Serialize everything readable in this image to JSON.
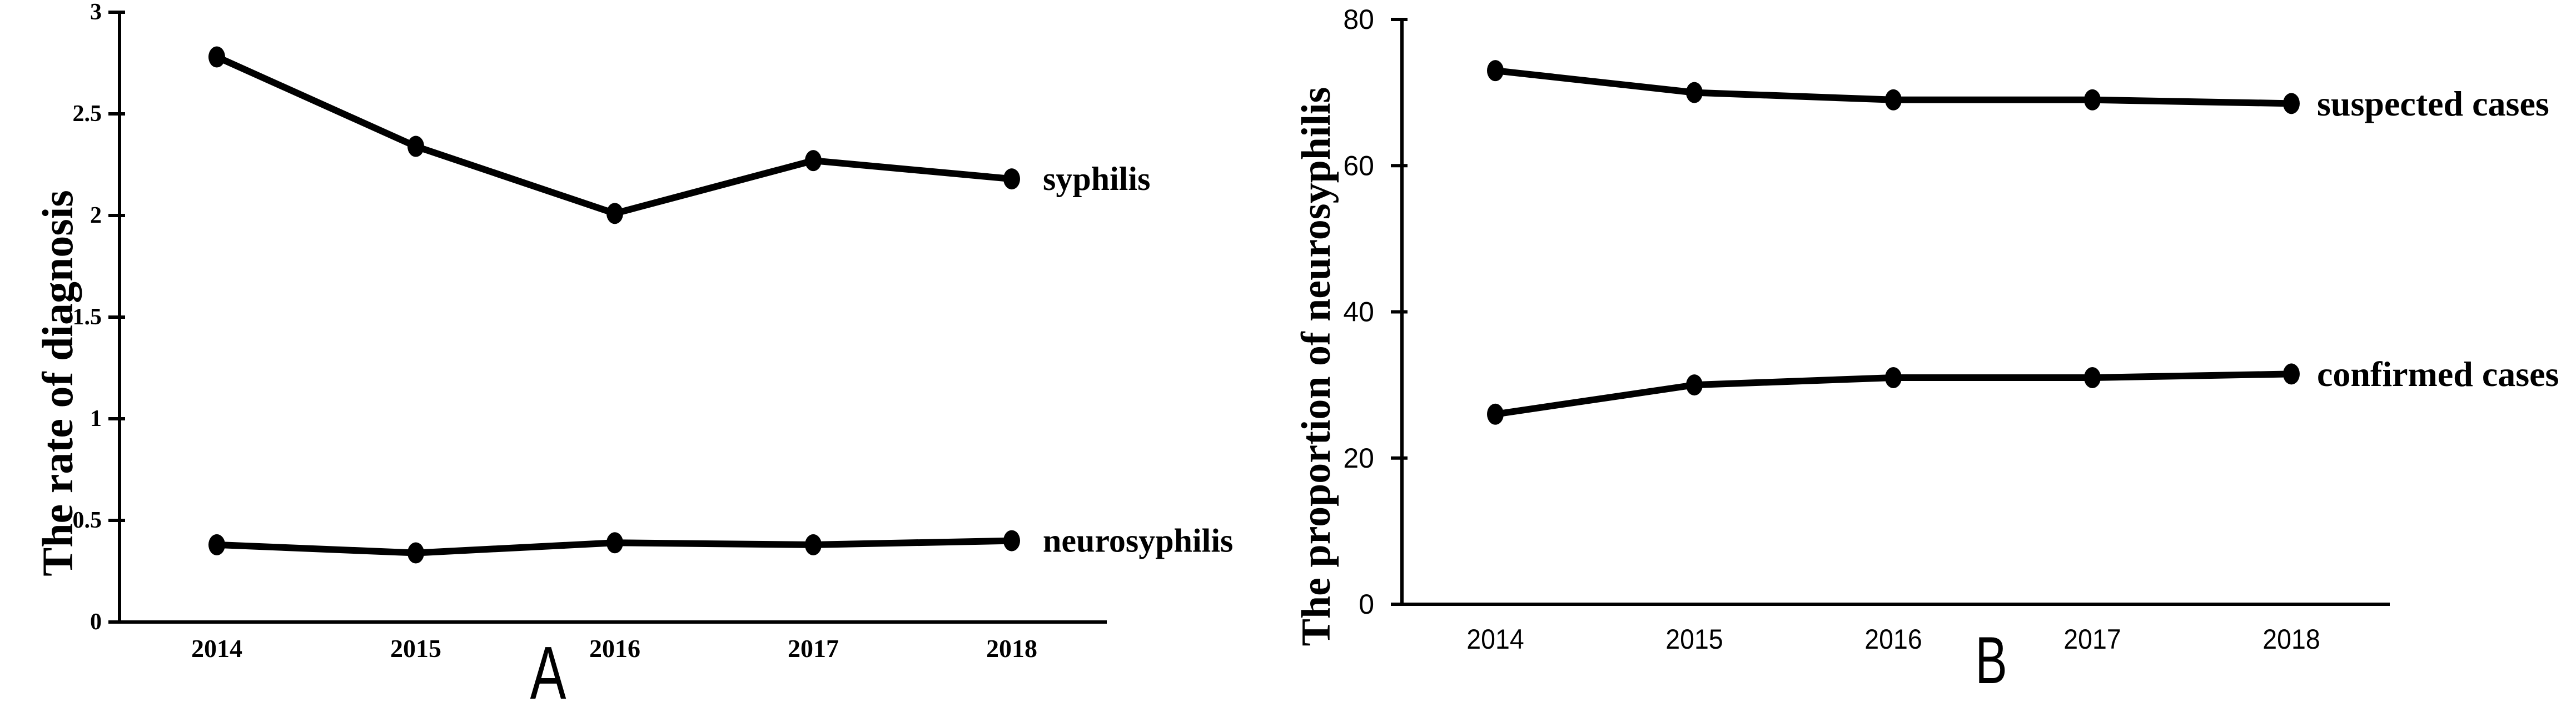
{
  "figure": {
    "background": "#ffffff",
    "ink_color": "#000000"
  },
  "chart_data": [
    {
      "type": "line",
      "panel_label": "A",
      "title": "",
      "xlabel": "",
      "ylabel": "The rate of diagnosis",
      "categories": [
        "2014",
        "2015",
        "2016",
        "2017",
        "2018"
      ],
      "y_ticks": [
        "0",
        "0.5",
        "1",
        "1.5",
        "2",
        "2.5",
        "3"
      ],
      "ylim": [
        0,
        3
      ],
      "grid": false,
      "legend_position": "line-end-labels",
      "series": [
        {
          "name": "syphilis",
          "values": [
            2.78,
            2.34,
            2.01,
            2.27,
            2.18
          ]
        },
        {
          "name": "neurosyphilis",
          "values": [
            0.38,
            0.34,
            0.39,
            0.38,
            0.4
          ]
        }
      ]
    },
    {
      "type": "line",
      "panel_label": "B",
      "title": "",
      "xlabel": "",
      "ylabel": "The proportion of neurosyphilis",
      "categories": [
        "2014",
        "2015",
        "2016",
        "2017",
        "2018"
      ],
      "y_ticks": [
        "0",
        "20",
        "40",
        "60",
        "80"
      ],
      "ylim": [
        0,
        80
      ],
      "grid": false,
      "legend_position": "line-end-labels",
      "series": [
        {
          "name": "suspected cases",
          "values": [
            73,
            70,
            69,
            69,
            68.5
          ]
        },
        {
          "name": "confirmed cases",
          "values": [
            26,
            30,
            31,
            31,
            31.5
          ]
        }
      ]
    }
  ]
}
